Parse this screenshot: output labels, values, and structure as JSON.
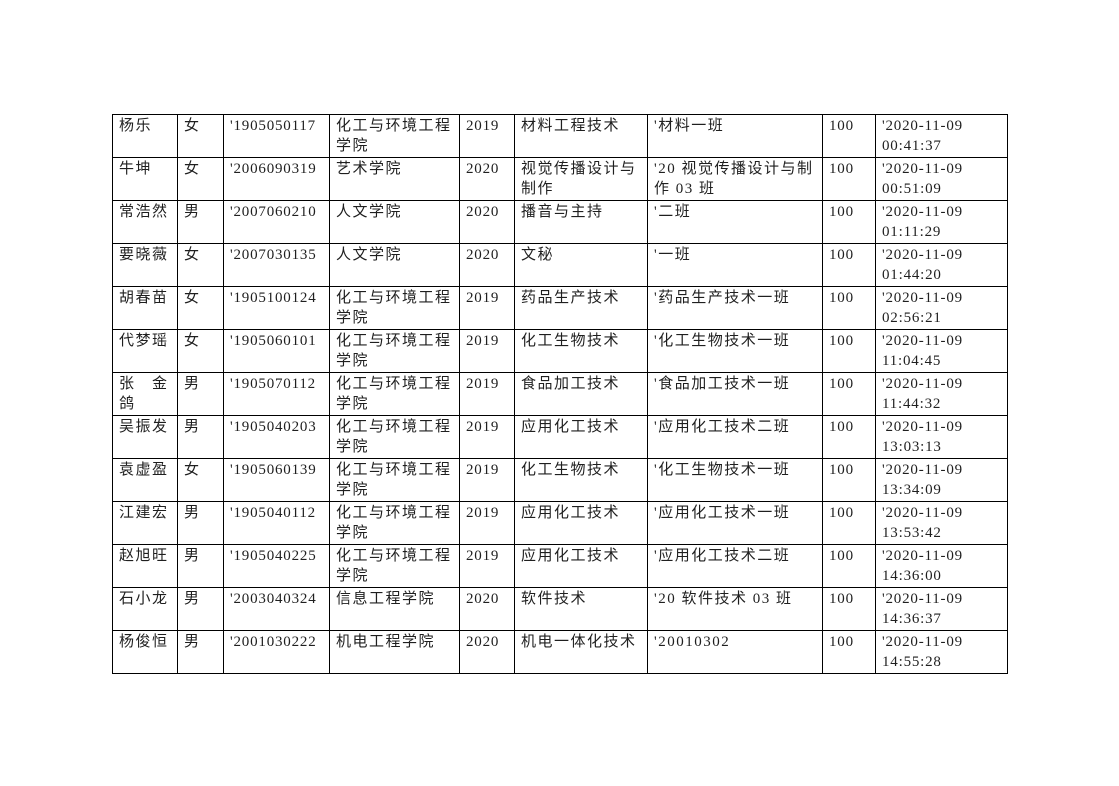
{
  "page": {
    "background_color": "#ffffff",
    "text_color": "#1f1f1f",
    "table_border_color": "#000000"
  },
  "table": {
    "rows": [
      [
        "杨乐",
        "女",
        "'1905050117",
        "化工与环境工程\n学院",
        "2019",
        "材料工程技术",
        "'材料一班",
        "100",
        "'2020-11-09\n00:41:37"
      ],
      [
        "牛坤",
        "女",
        "'2006090319",
        "艺术学院",
        "2020",
        "视觉传播设计与\n制作",
        "'20 视觉传播设计与制\n作 03 班",
        "100",
        "'2020-11-09\n00:51:09"
      ],
      [
        "常浩然",
        "男",
        "'2007060210",
        "人文学院",
        "2020",
        "播音与主持",
        "'二班",
        "100",
        "'2020-11-09\n01:11:29"
      ],
      [
        "要晓薇",
        "女",
        "'2007030135",
        "人文学院",
        "2020",
        "文秘",
        "'一班",
        "100",
        "'2020-11-09\n01:44:20"
      ],
      [
        "胡春苗",
        "女",
        "'1905100124",
        "化工与环境工程\n学院",
        "2019",
        "药品生产技术",
        "'药品生产技术一班",
        "100",
        "'2020-11-09\n02:56:21"
      ],
      [
        "代梦瑶",
        "女",
        "'1905060101",
        "化工与环境工程\n学院",
        "2019",
        "化工生物技术",
        "'化工生物技术一班",
        "100",
        "'2020-11-09\n11:04:45"
      ],
      [
        "张　金\n鸽",
        "男",
        "'1905070112",
        "化工与环境工程\n学院",
        "2019",
        "食品加工技术",
        "'食品加工技术一班",
        "100",
        "'2020-11-09\n11:44:32"
      ],
      [
        "吴振发",
        "男",
        "'1905040203",
        "化工与环境工程\n学院",
        "2019",
        "应用化工技术",
        "'应用化工技术二班",
        "100",
        "'2020-11-09\n13:03:13"
      ],
      [
        "袁虚盈",
        "女",
        "'1905060139",
        "化工与环境工程\n学院",
        "2019",
        "化工生物技术",
        "'化工生物技术一班",
        "100",
        "'2020-11-09\n13:34:09"
      ],
      [
        "江建宏",
        "男",
        "'1905040112",
        "化工与环境工程\n学院",
        "2019",
        "应用化工技术",
        "'应用化工技术一班",
        "100",
        "'2020-11-09\n13:53:42"
      ],
      [
        "赵旭旺",
        "男",
        "'1905040225",
        "化工与环境工程\n学院",
        "2019",
        "应用化工技术",
        "'应用化工技术二班",
        "100",
        "'2020-11-09\n14:36:00"
      ],
      [
        "石小龙",
        "男",
        "'2003040324",
        "信息工程学院",
        "2020",
        "软件技术",
        "'20 软件技术 03 班",
        "100",
        "'2020-11-09\n14:36:37"
      ],
      [
        "杨俊恒",
        "男",
        "'2001030222",
        "机电工程学院",
        "2020",
        "机电一体化技术",
        "'20010302",
        "100",
        "'2020-11-09\n14:55:28"
      ]
    ]
  }
}
